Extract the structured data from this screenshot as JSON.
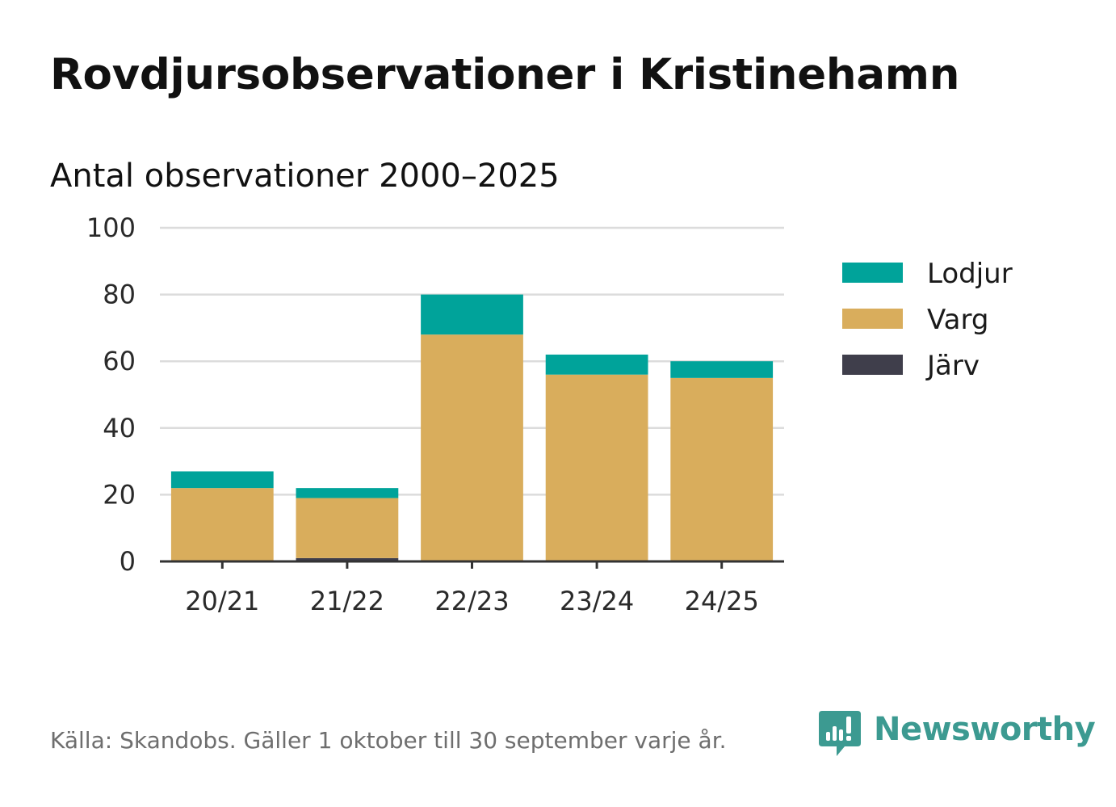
{
  "title": "Rovdjursobservationer i Kristinehamn",
  "subtitle": "Antal observationer 2000–2025",
  "source": "Källa: Skandobs. Gäller 1 oktober till 30 september varje år.",
  "brand": {
    "name": "Newsworthy",
    "color": "#3c9a91"
  },
  "chart_data": {
    "type": "bar",
    "stacked": true,
    "categories": [
      "20/21",
      "21/22",
      "22/23",
      "23/24",
      "24/25"
    ],
    "series": [
      {
        "name": "Järv",
        "color": "#3f3e4b",
        "values": [
          0,
          1,
          0,
          0,
          0
        ]
      },
      {
        "name": "Varg",
        "color": "#d9ad5c",
        "values": [
          22,
          18,
          68,
          56,
          55
        ]
      },
      {
        "name": "Lodjur",
        "color": "#00a39a",
        "values": [
          5,
          3,
          12,
          6,
          5
        ]
      }
    ],
    "legend_order": [
      "Lodjur",
      "Varg",
      "Järv"
    ],
    "legend_position": "right",
    "y_ticks": [
      0,
      20,
      40,
      60,
      80,
      100
    ],
    "ylim": [
      0,
      100
    ],
    "grid": true
  }
}
